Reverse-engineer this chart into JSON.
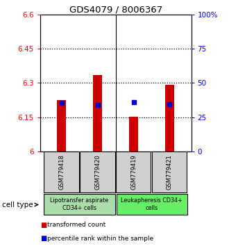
{
  "title": "GDS4079 / 8006367",
  "samples": [
    "GSM779418",
    "GSM779420",
    "GSM779419",
    "GSM779421"
  ],
  "bar_values": [
    6.225,
    6.335,
    6.153,
    6.292
  ],
  "bar_base": 6.0,
  "blue_dot_values": [
    6.212,
    6.205,
    6.215,
    6.208
  ],
  "ylim": [
    6.0,
    6.6
  ],
  "y2lim": [
    0,
    100
  ],
  "y_ticks": [
    6.0,
    6.15,
    6.3,
    6.45,
    6.6
  ],
  "y2_ticks": [
    0,
    25,
    50,
    75,
    100
  ],
  "y_tick_labels": [
    "6",
    "6.15",
    "6.3",
    "6.45",
    "6.6"
  ],
  "y2_tick_labels": [
    "0",
    "25",
    "50",
    "75",
    "100%"
  ],
  "groups": [
    {
      "label": "Lipotransfer aspirate\nCD34+ cells",
      "color": "#aaddaa"
    },
    {
      "label": "Leukapheresis CD34+\ncells",
      "color": "#66ee66"
    }
  ],
  "bar_color": "#cc0000",
  "dot_color": "#0000cc",
  "bar_width": 0.25,
  "legend_red_label": "transformed count",
  "legend_blue_label": "percentile rank within the sample"
}
